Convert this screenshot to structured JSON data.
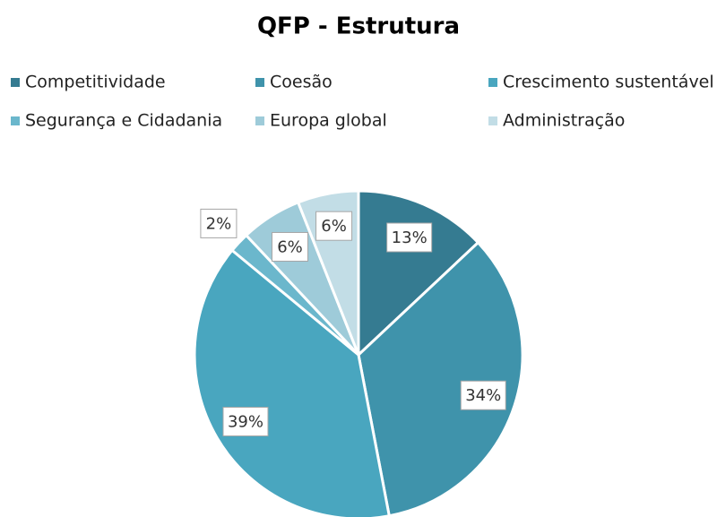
{
  "chart_data": {
    "type": "pie",
    "title": "QFP - Estrutura",
    "categories": [
      "Competitividade",
      "Coesão",
      "Crescimento sustentável",
      "Segurança e Cidadania",
      "Europa global",
      "Administração"
    ],
    "values": [
      13,
      34,
      39,
      2,
      6,
      6
    ],
    "value_labels": [
      "13%",
      "34%",
      "39%",
      "2%",
      "6%",
      "6%"
    ],
    "colors": [
      "#357b91",
      "#3f93ab",
      "#49a6bf",
      "#6bb7cc",
      "#9ecbd9",
      "#c2dde6"
    ],
    "legend": "top"
  }
}
